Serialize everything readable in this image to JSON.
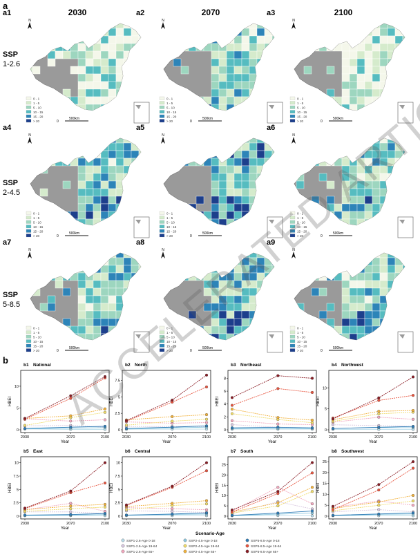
{
  "figure": {
    "panel_a_label": "a",
    "panel_b_label": "b",
    "columns": [
      "2030",
      "2070",
      "2100"
    ],
    "rows": [
      {
        "l1": "SSP",
        "l2": "1-2.6"
      },
      {
        "l1": "SSP",
        "l2": "2-4.5"
      },
      {
        "l1": "SSP",
        "l2": "5-8.5"
      }
    ],
    "maps": [
      {
        "id": "a1",
        "level": 0.22
      },
      {
        "id": "a2",
        "level": 0.45
      },
      {
        "id": "a3",
        "level": 0.14
      },
      {
        "id": "a4",
        "level": 0.55
      },
      {
        "id": "a5",
        "level": 0.65
      },
      {
        "id": "a6",
        "level": 0.45
      },
      {
        "id": "a7",
        "level": 0.55
      },
      {
        "id": "a8",
        "level": 0.6
      },
      {
        "id": "a9",
        "level": 0.48
      }
    ],
    "map_legend": [
      {
        "label": "0 - 1",
        "color": "#f4f7ea"
      },
      {
        "label": "1 - 5",
        "color": "#d5ebcc"
      },
      {
        "label": "5 - 10",
        "color": "#9dd6bf"
      },
      {
        "label": "10 - 15",
        "color": "#56bcc0"
      },
      {
        "label": "15 - 20",
        "color": "#2d84b8"
      },
      {
        "label": "> 20",
        "color": "#1d3f8c"
      }
    ],
    "scalebar": {
      "zero": "0",
      "dist": "500km"
    },
    "north": "N",
    "watermark": "ACCELERATED ARTICLE PREVIEW",
    "colors": {
      "outside": "#9a9a9a",
      "inset_border": "#555555"
    }
  },
  "chart_data": [
    {
      "id": "b1",
      "title": "National",
      "type": "line",
      "ylim": [
        0,
        13
      ],
      "yticks": [
        0,
        5,
        10
      ],
      "x": [
        2030,
        2070,
        2100
      ],
      "xlabel": "Year",
      "ylabel": "HBEI",
      "series": [
        {
          "name": "SSP1-2.6-Age 0-18",
          "values": [
            0.2,
            0.1,
            0.1
          ]
        },
        {
          "name": "SSP1-2.6-Age 19-64",
          "values": [
            0.9,
            1.0,
            0.6
          ]
        },
        {
          "name": "SSP1-2.6-Age 65+",
          "values": [
            2.5,
            2.0,
            2.3
          ]
        },
        {
          "name": "SSP2-4.5-Age 0-18",
          "values": [
            0.2,
            0.4,
            0.5
          ]
        },
        {
          "name": "SSP2-4.5-Age 19-64",
          "values": [
            1.0,
            2.8,
            4.0
          ]
        },
        {
          "name": "SSP2-4.5-Age 65+",
          "values": [
            2.6,
            3.2,
            4.8
          ]
        },
        {
          "name": "SSP5-8.5-Age 0-18",
          "values": [
            0.3,
            0.6,
            0.8
          ]
        },
        {
          "name": "SSP5-8.5-Age 19-64",
          "values": [
            2.4,
            7.2,
            11.9
          ]
        },
        {
          "name": "SSP5-8.5-Age 65+",
          "values": [
            2.6,
            7.8,
            12.2
          ]
        }
      ]
    },
    {
      "id": "b2",
      "title": "North",
      "type": "line",
      "ylim": [
        0,
        8.6
      ],
      "yticks": [
        0,
        2.5,
        5,
        7.5
      ],
      "x": [
        2030,
        2070,
        2100
      ],
      "xlabel": "Year",
      "ylabel": "HBEI",
      "series": [
        {
          "name": "SSP1-2.6-Age 0-18",
          "values": [
            0.1,
            0.1,
            0.1
          ]
        },
        {
          "name": "SSP1-2.6-Age 19-64",
          "values": [
            0.5,
            0.5,
            0.5
          ]
        },
        {
          "name": "SSP1-2.6-Age 65+",
          "values": [
            1.2,
            1.0,
            1.1
          ]
        },
        {
          "name": "SSP2-4.5-Age 0-18",
          "values": [
            0.1,
            0.3,
            0.4
          ]
        },
        {
          "name": "SSP2-4.5-Age 19-64",
          "values": [
            0.7,
            1.3,
            1.6
          ]
        },
        {
          "name": "SSP2-4.5-Age 65+",
          "values": [
            1.5,
            2.0,
            2.3
          ]
        },
        {
          "name": "SSP5-8.5-Age 0-18",
          "values": [
            0.2,
            0.4,
            0.6
          ]
        },
        {
          "name": "SSP5-8.5-Age 19-64",
          "values": [
            1.3,
            4.2,
            6.5
          ]
        },
        {
          "name": "SSP5-8.5-Age 65+",
          "values": [
            1.4,
            4.5,
            8.3
          ]
        }
      ]
    },
    {
      "id": "b3",
      "title": "Northeast",
      "type": "line",
      "ylim": [
        0,
        8.8
      ],
      "yticks": [
        0,
        2,
        4,
        6,
        8
      ],
      "x": [
        2030,
        2070,
        2100
      ],
      "xlabel": "Year",
      "ylabel": "HBEI",
      "series": [
        {
          "name": "SSP1-2.6-Age 0-18",
          "values": [
            0.1,
            0.1,
            0.1
          ]
        },
        {
          "name": "SSP1-2.6-Age 19-64",
          "values": [
            0.8,
            0.4,
            0.3
          ]
        },
        {
          "name": "SSP1-2.6-Age 65+",
          "values": [
            1.4,
            0.9,
            0.8
          ]
        },
        {
          "name": "SSP2-4.5-Age 0-18",
          "values": [
            0.2,
            0.2,
            0.2
          ]
        },
        {
          "name": "SSP2-4.5-Age 19-64",
          "values": [
            2.5,
            1.6,
            1.1
          ]
        },
        {
          "name": "SSP2-4.5-Age 65+",
          "values": [
            3.2,
            1.9,
            1.5
          ]
        },
        {
          "name": "SSP5-8.5-Age 0-18",
          "values": [
            0.3,
            0.4,
            0.3
          ]
        },
        {
          "name": "SSP5-8.5-Age 19-64",
          "values": [
            3.8,
            6.4,
            5.8
          ]
        },
        {
          "name": "SSP5-8.5-Age 65+",
          "values": [
            5.0,
            8.4,
            8.0
          ]
        }
      ]
    },
    {
      "id": "b4",
      "title": "Northwest",
      "type": "line",
      "ylim": [
        0,
        13.5
      ],
      "yticks": [
        0,
        5,
        10
      ],
      "x": [
        2030,
        2070,
        2100
      ],
      "xlabel": "Year",
      "ylabel": "HBEI",
      "series": [
        {
          "name": "SSP1-2.6-Age 0-18",
          "values": [
            0.1,
            0.1,
            0.1
          ]
        },
        {
          "name": "SSP1-2.6-Age 19-64",
          "values": [
            1.2,
            1.0,
            0.8
          ]
        },
        {
          "name": "SSP1-2.6-Age 65+",
          "values": [
            1.8,
            3.0,
            2.5
          ]
        },
        {
          "name": "SSP2-4.5-Age 0-18",
          "values": [
            0.3,
            0.5,
            0.5
          ]
        },
        {
          "name": "SSP2-4.5-Age 19-64",
          "values": [
            2.0,
            3.8,
            4.2
          ]
        },
        {
          "name": "SSP2-4.5-Age 65+",
          "values": [
            2.4,
            4.4,
            4.6
          ]
        },
        {
          "name": "SSP5-8.5-Age 0-18",
          "values": [
            0.3,
            0.6,
            0.8
          ]
        },
        {
          "name": "SSP5-8.5-Age 19-64",
          "values": [
            2.8,
            7.0,
            8.2
          ]
        },
        {
          "name": "SSP5-8.5-Age 65+",
          "values": [
            2.6,
            7.6,
            12.6
          ]
        }
      ]
    },
    {
      "id": "b5",
      "title": "East",
      "type": "line",
      "ylim": [
        0,
        10.6
      ],
      "yticks": [
        0,
        2.5,
        5,
        7.5,
        10
      ],
      "x": [
        2030,
        2070,
        2100
      ],
      "xlabel": "Year",
      "ylabel": "HBEI",
      "series": [
        {
          "name": "SSP1-2.6-Age 0-18",
          "values": [
            0.1,
            0.1,
            0.1
          ]
        },
        {
          "name": "SSP1-2.6-Age 19-64",
          "values": [
            0.8,
            0.8,
            0.5
          ]
        },
        {
          "name": "SSP1-2.6-Age 65+",
          "values": [
            1.2,
            2.4,
            0.9
          ]
        },
        {
          "name": "SSP2-4.5-Age 0-18",
          "values": [
            0.1,
            0.2,
            0.3
          ]
        },
        {
          "name": "SSP2-4.5-Age 19-64",
          "values": [
            0.9,
            1.4,
            1.7
          ]
        },
        {
          "name": "SSP2-4.5-Age 65+",
          "values": [
            1.2,
            1.9,
            2.2
          ]
        },
        {
          "name": "SSP5-8.5-Age 0-18",
          "values": [
            0.2,
            0.3,
            0.5
          ]
        },
        {
          "name": "SSP5-8.5-Age 19-64",
          "values": [
            1.4,
            4.4,
            6.2
          ]
        },
        {
          "name": "SSP5-8.5-Age 65+",
          "values": [
            1.5,
            4.7,
            10.0
          ]
        }
      ]
    },
    {
      "id": "b6",
      "title": "Central",
      "type": "line",
      "ylim": [
        0,
        10.6
      ],
      "yticks": [
        0,
        2.5,
        5,
        7.5,
        10
      ],
      "x": [
        2030,
        2070,
        2100
      ],
      "xlabel": "Year",
      "ylabel": "HBEI",
      "series": [
        {
          "name": "SSP1-2.6-Age 0-18",
          "values": [
            0.1,
            0.1,
            0.1
          ]
        },
        {
          "name": "SSP1-2.6-Age 19-64",
          "values": [
            1.0,
            0.9,
            0.7
          ]
        },
        {
          "name": "SSP1-2.6-Age 65+",
          "values": [
            1.6,
            1.4,
            1.2
          ]
        },
        {
          "name": "SSP2-4.5-Age 0-18",
          "values": [
            0.2,
            0.3,
            0.4
          ]
        },
        {
          "name": "SSP2-4.5-Age 19-64",
          "values": [
            1.2,
            2.0,
            2.3
          ]
        },
        {
          "name": "SSP2-4.5-Age 65+",
          "values": [
            1.8,
            2.4,
            2.9
          ]
        },
        {
          "name": "SSP5-8.5-Age 0-18",
          "values": [
            0.2,
            0.4,
            0.6
          ]
        },
        {
          "name": "SSP5-8.5-Age 19-64",
          "values": [
            2.0,
            5.4,
            8.5
          ]
        },
        {
          "name": "SSP5-8.5-Age 65+",
          "values": [
            2.1,
            5.6,
            10.0
          ]
        }
      ]
    },
    {
      "id": "b7",
      "title": "South",
      "type": "line",
      "ylim": [
        0,
        27.5
      ],
      "yticks": [
        0,
        5,
        10,
        15,
        20,
        25
      ],
      "x": [
        2030,
        2070,
        2100
      ],
      "xlabel": "Year",
      "ylabel": "HBEI",
      "series": [
        {
          "name": "SSP1-2.6-Age 0-18",
          "values": [
            0.2,
            0.3,
            0.2
          ]
        },
        {
          "name": "SSP1-2.6-Age 19-64",
          "values": [
            1.2,
            7.0,
            3.5
          ]
        },
        {
          "name": "SSP1-2.6-Age 65+",
          "values": [
            2.5,
            14.0,
            6.0
          ]
        },
        {
          "name": "SSP2-4.5-Age 0-18",
          "values": [
            0.3,
            1.0,
            1.5
          ]
        },
        {
          "name": "SSP2-4.5-Age 19-64",
          "values": [
            1.5,
            5.0,
            12.0
          ]
        },
        {
          "name": "SSP2-4.5-Age 65+",
          "values": [
            2.0,
            6.5,
            14.0
          ]
        },
        {
          "name": "SSP5-8.5-Age 0-18",
          "values": [
            0.4,
            1.5,
            2.5
          ]
        },
        {
          "name": "SSP5-8.5-Age 19-64",
          "values": [
            2.0,
            11.0,
            21.0
          ]
        },
        {
          "name": "SSP5-8.5-Age 65+",
          "values": [
            3.0,
            12.0,
            26.0
          ]
        }
      ]
    },
    {
      "id": "b8",
      "title": "Southwest",
      "type": "line",
      "ylim": [
        0,
        26
      ],
      "yticks": [
        0,
        5,
        10,
        15,
        20,
        25
      ],
      "x": [
        2030,
        2070,
        2100
      ],
      "xlabel": "Year",
      "ylabel": "HBEI",
      "series": [
        {
          "name": "SSP1-2.6-Age 0-18",
          "values": [
            0.2,
            0.2,
            0.2
          ]
        },
        {
          "name": "SSP1-2.6-Age 19-64",
          "values": [
            2.0,
            3.0,
            2.0
          ]
        },
        {
          "name": "SSP1-2.6-Age 65+",
          "values": [
            4.0,
            7.0,
            5.0
          ]
        },
        {
          "name": "SSP2-4.5-Age 0-18",
          "values": [
            0.3,
            0.8,
            1.0
          ]
        },
        {
          "name": "SSP2-4.5-Age 19-64",
          "values": [
            2.5,
            5.0,
            7.0
          ]
        },
        {
          "name": "SSP2-4.5-Age 65+",
          "values": [
            3.5,
            6.5,
            9.5
          ]
        },
        {
          "name": "SSP5-8.5-Age 0-18",
          "values": [
            0.4,
            1.0,
            1.5
          ]
        },
        {
          "name": "SSP5-8.5-Age 19-64",
          "values": [
            3.0,
            12.0,
            22.0
          ]
        },
        {
          "name": "SSP5-8.5-Age 65+",
          "values": [
            4.5,
            14.5,
            25.0
          ]
        }
      ]
    }
  ],
  "legend": {
    "title": "Scenario-Age",
    "items": [
      {
        "label": "SSP1-2.6-Age 0-18",
        "color": "#b8dbe9"
      },
      {
        "label": "SSP1-2.6-Age 19-64",
        "color": "#d8c8e0"
      },
      {
        "label": "SSP1-2.6-Age 65+",
        "color": "#f2a8be"
      },
      {
        "label": "SSP2-4.5-Age 0-18",
        "color": "#8cc8e0"
      },
      {
        "label": "SSP2-4.5-Age 19-64",
        "color": "#f0dc6a"
      },
      {
        "label": "SSP2-4.5-Age 65+",
        "color": "#f2b23c"
      },
      {
        "label": "SSP5-8.5-Age 0-18",
        "color": "#2d7bb6"
      },
      {
        "label": "SSP5-8.5-Age 19-64",
        "color": "#e8553f"
      },
      {
        "label": "SSP5-8.5-Age 65+",
        "color": "#8a1c24"
      }
    ]
  }
}
